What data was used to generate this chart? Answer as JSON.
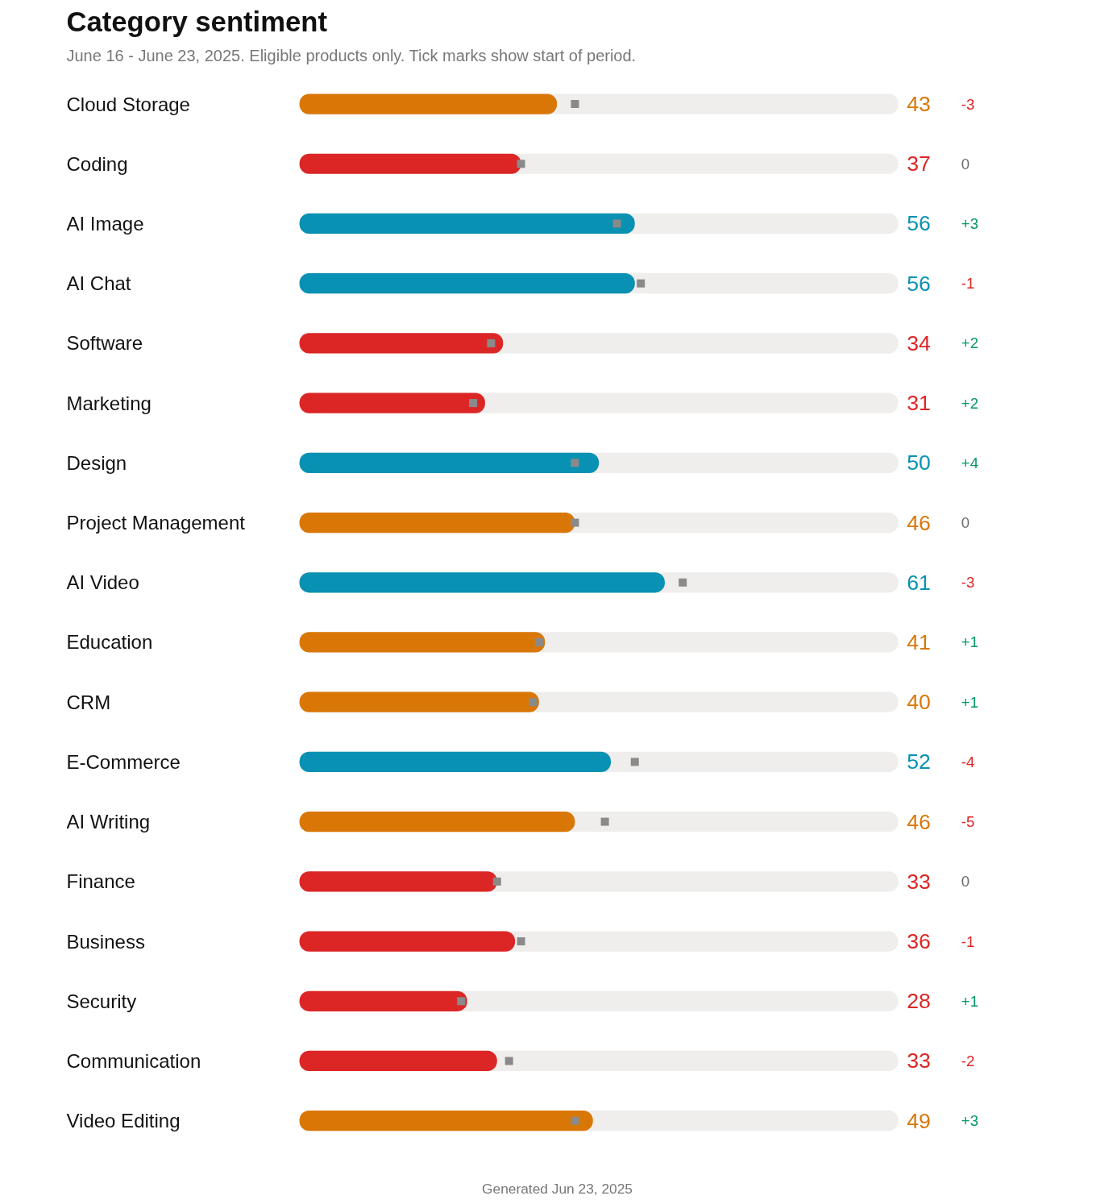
{
  "chart_data": {
    "type": "bar",
    "orientation": "horizontal",
    "title": "Category sentiment",
    "subtitle": "June 16 - June 23, 2025. Eligible products only. Tick marks show start of period.",
    "categories": [
      "Cloud Storage",
      "Coding",
      "AI Image",
      "AI Chat",
      "Software",
      "Marketing",
      "Design",
      "Project Management",
      "AI Video",
      "Education",
      "CRM",
      "E-Commerce",
      "AI Writing",
      "Finance",
      "Business",
      "Security",
      "Communication",
      "Video Editing"
    ],
    "xlim": [
      0,
      100
    ],
    "tick_labels": false,
    "grid": false,
    "series": [
      {
        "values": [
          43,
          37,
          56,
          56,
          34,
          31,
          50,
          46,
          61,
          41,
          40,
          52,
          46,
          33,
          36,
          28,
          33,
          49
        ],
        "colors": [
          "#d97706",
          "#dc2626",
          "#0891b2",
          "#0891b2",
          "#dc2626",
          "#dc2626",
          "#0891b2",
          "#d97706",
          "#0891b2",
          "#d97706",
          "#d97706",
          "#0891b2",
          "#d97706",
          "#dc2626",
          "#dc2626",
          "#dc2626",
          "#dc2626",
          "#d97706"
        ],
        "data_labels": true
      },
      {
        "type": "scatter",
        "color": "#8a8a8a",
        "marker": "square",
        "values": [
          46,
          37,
          53,
          57,
          32,
          29,
          46,
          46,
          64,
          40,
          39,
          56,
          51,
          33,
          37,
          27,
          35,
          46
        ]
      }
    ],
    "annotations": [
      "-3",
      "0",
      "+3",
      "-1",
      "+2",
      "+2",
      "+4",
      "0",
      "-3",
      "+1",
      "+1",
      "-4",
      "-5",
      "0",
      "-1",
      "+1",
      "-2",
      "+3",
      "Generated Jun 23, 2025"
    ]
  }
}
